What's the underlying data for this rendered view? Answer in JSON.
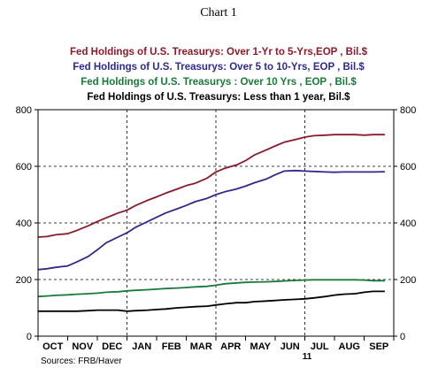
{
  "chart_data": {
    "type": "line",
    "title": "Chart 1",
    "legend": [
      {
        "label": "Fed Holdings of U.S. Treasurys: Over 1-Yr to 5-Yrs,EOP , Bil.$",
        "color": "#8b1a2b"
      },
      {
        "label": "Fed Holdings of U.S. Treasurys: Over 5 to 10-Yrs, EOP , Bil.$",
        "color": "#2e2a8c"
      },
      {
        "label": "Fed Holdings of U.S. Treasurys : Over 10 Yrs , EOP , Bil.$",
        "color": "#1a7a3a"
      },
      {
        "label": "Fed Holdings of U.S. Treasurys: Less than 1 year, Bil.$",
        "color": "#000000"
      }
    ],
    "x_ticks": [
      "OCT",
      "NOV",
      "DEC",
      "JAN",
      "FEB",
      "MAR",
      "APR",
      "MAY",
      "JUN",
      "JUL",
      "AUG",
      "SEP"
    ],
    "x_sublabel": "11",
    "y_ticks": [
      "0",
      "200",
      "400",
      "600",
      "800"
    ],
    "ylim": [
      0,
      800
    ],
    "xlim": [
      0,
      12
    ],
    "grid": true,
    "source": "Sources:  FRB/Haver",
    "series": [
      {
        "name": "Fed Holdings of U.S. Treasurys: Over 1-Yr to 5-Yrs,EOP , Bil.$",
        "color": "#8b1a2b",
        "x": [
          0,
          0.3,
          0.6,
          1.0,
          1.3,
          1.7,
          2.0,
          2.3,
          2.7,
          3.0,
          3.3,
          3.7,
          4.0,
          4.3,
          4.7,
          5.0,
          5.3,
          5.7,
          6.0,
          6.3,
          6.7,
          7.0,
          7.3,
          7.7,
          8.0,
          8.3,
          8.7,
          9.0,
          9.3,
          9.7,
          10.0,
          10.3,
          10.7,
          11.0,
          11.3,
          11.7
        ],
        "y": [
          350,
          352,
          358,
          362,
          373,
          390,
          405,
          418,
          435,
          445,
          462,
          480,
          492,
          505,
          520,
          532,
          540,
          558,
          580,
          593,
          605,
          620,
          640,
          658,
          672,
          685,
          695,
          703,
          708,
          710,
          712,
          712,
          712,
          710,
          712,
          712
        ]
      },
      {
        "name": "Fed Holdings of U.S. Treasurys: Over 5 to 10-Yrs, EOP , Bil.$",
        "color": "#2e2a8c",
        "x": [
          0,
          0.3,
          0.6,
          1.0,
          1.3,
          1.7,
          2.0,
          2.3,
          2.7,
          3.0,
          3.3,
          3.7,
          4.0,
          4.3,
          4.7,
          5.0,
          5.3,
          5.7,
          6.0,
          6.3,
          6.7,
          7.0,
          7.3,
          7.7,
          8.0,
          8.3,
          8.7,
          9.0,
          9.3,
          9.7,
          10.0,
          10.3,
          10.7,
          11.0,
          11.3,
          11.7
        ],
        "y": [
          235,
          238,
          243,
          248,
          262,
          282,
          305,
          330,
          350,
          365,
          385,
          405,
          420,
          435,
          450,
          462,
          475,
          487,
          500,
          510,
          520,
          530,
          542,
          555,
          570,
          583,
          585,
          583,
          582,
          580,
          579,
          580,
          580,
          580,
          580,
          581
        ]
      },
      {
        "name": "Fed Holdings of U.S. Treasurys : Over 10 Yrs , EOP , Bil.$",
        "color": "#1a7a3a",
        "x": [
          0,
          0.3,
          0.6,
          1.0,
          1.3,
          1.7,
          2.0,
          2.3,
          2.7,
          3.0,
          3.3,
          3.7,
          4.0,
          4.3,
          4.7,
          5.0,
          5.3,
          5.7,
          6.0,
          6.3,
          6.7,
          7.0,
          7.3,
          7.7,
          8.0,
          8.3,
          8.7,
          9.0,
          9.3,
          9.7,
          10.0,
          10.3,
          10.7,
          11.0,
          11.3,
          11.7
        ],
        "y": [
          140,
          142,
          144,
          146,
          148,
          150,
          152,
          155,
          157,
          160,
          162,
          164,
          166,
          168,
          170,
          172,
          174,
          176,
          180,
          185,
          188,
          190,
          191,
          192,
          193,
          195,
          197,
          198,
          199,
          199,
          199,
          199,
          199,
          198,
          196,
          196
        ]
      },
      {
        "name": "Fed Holdings of U.S. Treasurys: Less than 1 year, Bil.$",
        "color": "#000000",
        "x": [
          0,
          0.3,
          0.6,
          1.0,
          1.3,
          1.7,
          2.0,
          2.3,
          2.7,
          3.0,
          3.3,
          3.7,
          4.0,
          4.3,
          4.7,
          5.0,
          5.3,
          5.7,
          6.0,
          6.3,
          6.7,
          7.0,
          7.3,
          7.7,
          8.0,
          8.3,
          8.7,
          9.0,
          9.3,
          9.7,
          10.0,
          10.3,
          10.7,
          11.0,
          11.3,
          11.7
        ],
        "y": [
          88,
          88,
          88,
          88,
          88,
          90,
          92,
          92,
          92,
          88,
          90,
          92,
          94,
          96,
          100,
          102,
          104,
          106,
          110,
          114,
          118,
          118,
          122,
          124,
          126,
          128,
          130,
          132,
          135,
          140,
          145,
          148,
          150,
          155,
          158,
          158
        ]
      }
    ]
  }
}
